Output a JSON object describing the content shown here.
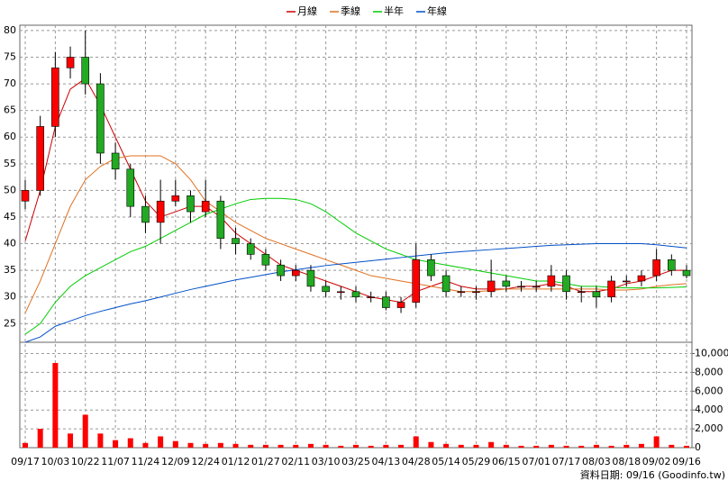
{
  "chart_data": {
    "type": "candlestick",
    "legend_position": "top",
    "categories": [
      "09/17",
      null,
      "10/03",
      null,
      "10/22",
      null,
      "11/07",
      null,
      "11/24",
      null,
      "12/09",
      null,
      "12/24",
      null,
      "01/12",
      null,
      "01/27",
      null,
      "02/11",
      null,
      "03/10",
      null,
      "03/25",
      null,
      "04/13",
      null,
      "04/28",
      null,
      "05/14",
      null,
      "05/29",
      null,
      "06/15",
      null,
      "07/01",
      null,
      "07/17",
      null,
      "08/03",
      null,
      "08/18",
      null,
      "09/02",
      null,
      "09/16"
    ],
    "open": [
      48,
      50,
      62,
      73,
      75,
      70,
      57,
      54,
      47,
      44,
      48,
      49,
      46,
      48,
      41,
      40,
      38,
      36,
      34,
      35,
      32,
      31,
      31,
      30,
      30,
      28,
      29,
      37,
      34,
      31,
      31,
      31,
      33,
      32,
      32,
      32,
      34,
      31,
      31,
      30,
      33,
      33,
      34,
      37,
      35
    ],
    "high": [
      52,
      64,
      76,
      77,
      80,
      72,
      59,
      55,
      49,
      52,
      52,
      50,
      52,
      49,
      43,
      41,
      39,
      37,
      36,
      36,
      33,
      32,
      32,
      31,
      31,
      30,
      40,
      38,
      35,
      32,
      32,
      37,
      34,
      33,
      33,
      36,
      35,
      32,
      32,
      34,
      34,
      35,
      39,
      38,
      36
    ],
    "low": [
      46.5,
      49,
      60,
      71,
      68,
      55,
      52,
      45,
      42,
      40,
      47,
      44,
      45,
      39,
      38,
      37,
      35,
      33,
      33,
      31,
      30,
      29.5,
      29,
      29,
      27.5,
      27,
      28,
      33,
      30,
      30,
      29.5,
      30,
      31,
      31,
      31,
      31,
      29.5,
      29,
      28,
      29,
      32,
      32,
      33,
      34,
      33.5
    ],
    "close": [
      50,
      62,
      73,
      75,
      70,
      57,
      54,
      47,
      44,
      48,
      49,
      46,
      48,
      41,
      40,
      38,
      36,
      34,
      35,
      32,
      31,
      31,
      30,
      30,
      28,
      29,
      37,
      34,
      31,
      31,
      31,
      33,
      32,
      32,
      32,
      34,
      31,
      31,
      30,
      33,
      33,
      34,
      37,
      35,
      34
    ],
    "up_color": "#ff0000",
    "down_color": "#22aa22",
    "series": [
      {
        "name": "月線",
        "color": "#cc0000",
        "values": [
          40.5,
          50,
          62,
          69,
          71,
          66,
          60,
          54,
          48,
          45,
          46,
          47,
          47,
          45,
          42,
          40,
          38,
          36,
          35,
          34,
          33,
          32,
          31,
          30,
          29.5,
          29,
          31,
          32,
          33,
          32,
          31.5,
          31.5,
          31.5,
          32,
          32,
          32.5,
          32,
          31,
          31,
          31.5,
          32.5,
          33,
          34,
          35,
          35
        ]
      },
      {
        "name": "季線",
        "color": "#e07020",
        "values": [
          27,
          33,
          40,
          47,
          52,
          54.5,
          56,
          56.5,
          56.5,
          56.5,
          55,
          52,
          48,
          46,
          44,
          42.5,
          41,
          40,
          39,
          38,
          37,
          36,
          35,
          34,
          33.5,
          33,
          32.5,
          32,
          31.5,
          31,
          31,
          31.2,
          31.5,
          31.5,
          31.5,
          31.5,
          31.5,
          31.5,
          31.5,
          31.3,
          31.3,
          31.5,
          32,
          32.3,
          32.5
        ]
      },
      {
        "name": "半年",
        "color": "#00cc00",
        "values": [
          23,
          25,
          29,
          32,
          34,
          35.5,
          37,
          38.5,
          39.5,
          41,
          42.5,
          44,
          45.5,
          46.5,
          47.5,
          48.3,
          48.5,
          48.5,
          48.3,
          47.5,
          46,
          44,
          42,
          40.5,
          39,
          38,
          37,
          36.5,
          36,
          35.5,
          35,
          34.5,
          34,
          33.5,
          33,
          33,
          32.5,
          32,
          32,
          31.8,
          31.7,
          31.7,
          31.7,
          31.8,
          31.9
        ]
      },
      {
        "name": "年線",
        "color": "#0050c8",
        "values": [
          21.5,
          22.5,
          24.5,
          25.5,
          26.5,
          27.3,
          28,
          28.7,
          29.3,
          30,
          30.7,
          31.4,
          32,
          32.6,
          33.2,
          33.7,
          34.2,
          34.7,
          35.1,
          35.5,
          35.9,
          36.2,
          36.5,
          36.8,
          37.1,
          37.4,
          37.7,
          38,
          38.3,
          38.5,
          38.7,
          38.9,
          39.1,
          39.3,
          39.5,
          39.7,
          39.8,
          39.9,
          40,
          40,
          40,
          40,
          39.8,
          39.5,
          39.2
        ]
      }
    ],
    "ylim": [
      21.5,
      81
    ],
    "yticks": [
      25,
      30,
      35,
      40,
      45,
      50,
      55,
      60,
      65,
      70,
      75,
      80
    ],
    "grid": true,
    "volume": {
      "color": "#ff0000",
      "values": [
        500,
        2000,
        9000,
        1500,
        3500,
        1500,
        800,
        1000,
        500,
        1200,
        700,
        500,
        400,
        500,
        400,
        300,
        300,
        300,
        300,
        400,
        300,
        200,
        300,
        200,
        300,
        300,
        1200,
        600,
        400,
        300,
        300,
        600,
        300,
        200,
        200,
        300,
        200,
        200,
        300,
        200,
        300,
        400,
        1200,
        300,
        200
      ],
      "ylim": [
        0,
        11200
      ],
      "yticks": [
        0,
        {
          "value": 2000,
          "label": "2,000"
        },
        {
          "value": 4000,
          "label": "4,000"
        },
        {
          "value": 6000,
          "label": "6,000"
        },
        {
          "value": 8000,
          "label": "8,000"
        },
        {
          "value": 10000,
          "label": "10,000"
        }
      ]
    },
    "footer": "資料日期: 09/16  (Goodinfo.tw)"
  }
}
